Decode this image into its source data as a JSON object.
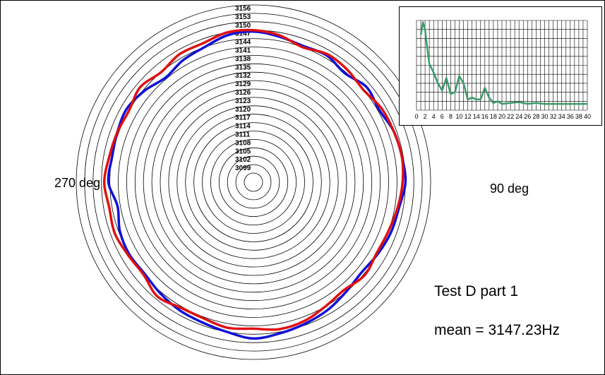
{
  "test_title": "Test D part 1",
  "mean_label": "mean = 3147.23Hz",
  "angle_labels": {
    "left": "270 deg",
    "right": "90 deg"
  },
  "colors": {
    "series_blue": "#1010d8",
    "series_red": "#e01010",
    "spectrum": "#3a9a6a"
  },
  "chart_data": [
    {
      "type": "polar-line",
      "title": "",
      "radial_ticks": [
        3099,
        3102,
        3105,
        3108,
        3111,
        3114,
        3117,
        3120,
        3123,
        3126,
        3129,
        3132,
        3135,
        3138,
        3141,
        3144,
        3147,
        3150,
        3153,
        3156
      ],
      "r_range": [
        3096,
        3156
      ],
      "angle_unit": "deg",
      "angle_orientation": "0 deg at top, clockwise",
      "series": [
        {
          "color": "blue",
          "theta": [
            0,
            10,
            20,
            30,
            40,
            50,
            60,
            70,
            80,
            90,
            100,
            110,
            120,
            130,
            140,
            150,
            160,
            170,
            180,
            190,
            200,
            210,
            220,
            230,
            240,
            250,
            260,
            270,
            280,
            290,
            300,
            310,
            320,
            330,
            340,
            350
          ],
          "r": [
            3146.5,
            3145.5,
            3144.5,
            3145.0,
            3143.5,
            3145.5,
            3144.5,
            3146.0,
            3146.5,
            3147.0,
            3145.5,
            3145.0,
            3144.0,
            3143.0,
            3144.0,
            3145.5,
            3146.5,
            3147.5,
            3148.5,
            3147.0,
            3146.0,
            3145.5,
            3144.5,
            3143.5,
            3144.0,
            3143.5,
            3142.0,
            3144.5,
            3144.0,
            3144.5,
            3145.0,
            3143.5,
            3141.5,
            3143.0,
            3144.0,
            3146.0
          ]
        },
        {
          "color": "red",
          "theta": [
            0,
            10,
            20,
            30,
            40,
            50,
            60,
            70,
            80,
            90,
            100,
            110,
            120,
            130,
            140,
            150,
            160,
            170,
            180,
            190,
            200,
            210,
            220,
            230,
            240,
            250,
            260,
            270,
            280,
            290,
            300,
            310,
            320,
            330,
            340,
            350
          ],
          "r": [
            3147.0,
            3146.0,
            3144.0,
            3145.5,
            3145.0,
            3144.0,
            3145.5,
            3146.0,
            3146.5,
            3146.0,
            3145.0,
            3144.0,
            3143.5,
            3144.5,
            3143.0,
            3144.0,
            3145.5,
            3146.0,
            3145.0,
            3145.5,
            3144.5,
            3144.5,
            3146.0,
            3144.0,
            3144.5,
            3145.5,
            3145.0,
            3146.0,
            3145.0,
            3144.5,
            3144.0,
            3145.5,
            3144.0,
            3145.5,
            3145.5,
            3147.0
          ]
        }
      ]
    },
    {
      "type": "line",
      "title": "",
      "x_ticks": [
        "0",
        "2",
        "4",
        "6",
        "8",
        "10",
        "12",
        "14",
        "16",
        "18",
        "20",
        "22",
        "24",
        "26",
        "28",
        "30",
        "32",
        "34",
        "36",
        "38",
        "40"
      ],
      "xlim": [
        0,
        40
      ],
      "ylim": [
        0,
        1
      ],
      "grid": true,
      "series": [
        {
          "x": [
            1,
            1.5,
            2,
            2.5,
            3,
            4,
            5,
            6,
            7,
            8,
            9,
            10,
            11,
            12,
            13,
            14,
            15,
            16,
            17,
            18,
            19,
            20,
            22,
            24,
            26,
            28,
            30,
            32,
            34,
            36,
            38,
            40
          ],
          "y": [
            0.84,
            0.98,
            0.9,
            0.7,
            0.52,
            0.42,
            0.3,
            0.22,
            0.36,
            0.18,
            0.2,
            0.38,
            0.3,
            0.12,
            0.14,
            0.12,
            0.12,
            0.25,
            0.14,
            0.08,
            0.1,
            0.07,
            0.08,
            0.09,
            0.07,
            0.08,
            0.07,
            0.07,
            0.07,
            0.07,
            0.07,
            0.07
          ]
        }
      ]
    }
  ]
}
